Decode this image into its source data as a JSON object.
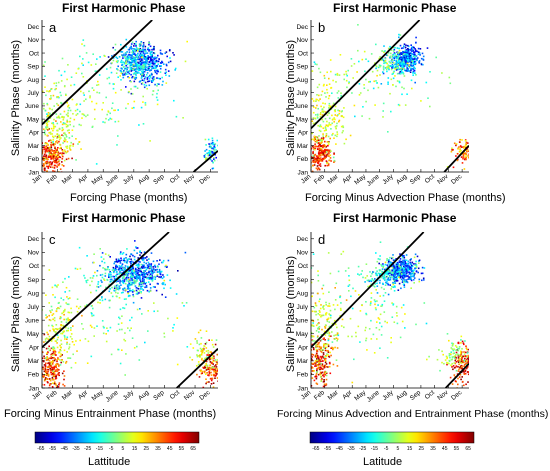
{
  "chart_data": [
    {
      "type": "scatter",
      "panel_label": "a",
      "title": "First Harmonic Phase",
      "xlabel": "Forcing Phase (months)",
      "ylabel": "Salinity Phase (months)",
      "x_ticks": [
        "Jan",
        "Feb",
        "Mar",
        "Apr",
        "May",
        "June",
        "July",
        "Aug",
        "Sep",
        "Oct",
        "Nov",
        "Dec"
      ],
      "y_ticks": [
        "Jan",
        "Feb",
        "Mar",
        "Apr",
        "May",
        "June",
        "July",
        "Aug",
        "Sep",
        "Oct",
        "Nov",
        "Dec"
      ],
      "xlim": [
        1,
        12.5
      ],
      "ylim": [
        1,
        12.5
      ],
      "lines": [
        {
          "x": [
            1,
            8.2
          ],
          "y": [
            4.6,
            12.5
          ]
        },
        {
          "x": [
            10.9,
            12.5
          ],
          "y": [
            1,
            2.6
          ]
        }
      ],
      "clusters": [
        {
          "cx": 7.6,
          "cy": 9.3,
          "sx": 0.7,
          "sy": 0.8,
          "n": 420,
          "lat": [
            -60,
            -10
          ]
        },
        {
          "cx": 6.8,
          "cy": 9.4,
          "sx": 0.6,
          "sy": 0.6,
          "n": 180,
          "lat": [
            -40,
            5
          ]
        },
        {
          "cx": 1.6,
          "cy": 2.2,
          "sx": 0.45,
          "sy": 0.8,
          "n": 260,
          "lat": [
            25,
            65
          ]
        },
        {
          "cx": 1.9,
          "cy": 4.8,
          "sx": 0.7,
          "sy": 1.4,
          "n": 220,
          "lat": [
            -5,
            25
          ]
        },
        {
          "cx": 12.1,
          "cy": 2.6,
          "sx": 0.35,
          "sy": 0.5,
          "n": 90,
          "lat": [
            -50,
            10
          ]
        },
        {
          "cx": 5.0,
          "cy": 7.0,
          "sx": 2.2,
          "sy": 2.0,
          "n": 180,
          "lat": [
            -20,
            20
          ]
        }
      ]
    },
    {
      "type": "scatter",
      "panel_label": "b",
      "title": "First Harmonic Phase",
      "xlabel": "Forcing Minus Advection Phase (months)",
      "ylabel": "Salinity Phase (months)",
      "x_ticks": [
        "Jan",
        "Feb",
        "Mar",
        "Apr",
        "May",
        "June",
        "July",
        "Aug",
        "Sep",
        "Oct",
        "Nov",
        "Dec"
      ],
      "y_ticks": [
        "Jan",
        "Feb",
        "Mar",
        "Apr",
        "May",
        "June",
        "July",
        "Aug",
        "Sep",
        "Oct",
        "Nov",
        "Dec"
      ],
      "xlim": [
        1,
        12.5
      ],
      "ylim": [
        1,
        12.5
      ],
      "lines": [
        {
          "x": [
            1,
            8.9
          ],
          "y": [
            4.3,
            12.5
          ]
        },
        {
          "x": [
            10.7,
            12.5
          ],
          "y": [
            1,
            3.0
          ]
        }
      ],
      "clusters": [
        {
          "cx": 7.9,
          "cy": 9.6,
          "sx": 0.5,
          "sy": 0.5,
          "n": 380,
          "lat": [
            -60,
            -15
          ]
        },
        {
          "cx": 7.0,
          "cy": 9.3,
          "sx": 0.6,
          "sy": 0.5,
          "n": 120,
          "lat": [
            -30,
            10
          ]
        },
        {
          "cx": 1.6,
          "cy": 2.5,
          "sx": 0.4,
          "sy": 0.6,
          "n": 250,
          "lat": [
            25,
            65
          ]
        },
        {
          "cx": 2.0,
          "cy": 5.0,
          "sx": 0.7,
          "sy": 1.5,
          "n": 200,
          "lat": [
            -5,
            25
          ]
        },
        {
          "cx": 12.0,
          "cy": 2.6,
          "sx": 0.35,
          "sy": 0.5,
          "n": 90,
          "lat": [
            10,
            55
          ]
        },
        {
          "cx": 5.5,
          "cy": 8.5,
          "sx": 2.0,
          "sy": 1.5,
          "n": 130,
          "lat": [
            -20,
            20
          ]
        }
      ]
    },
    {
      "type": "scatter",
      "panel_label": "c",
      "title": "First Harmonic Phase",
      "xlabel": "Forcing Minus Entrainment Phase (months)",
      "ylabel": "Salinity Phase (months)",
      "x_ticks": [
        "Jan",
        "Feb",
        "Mar",
        "Apr",
        "May",
        "June",
        "July",
        "Aug",
        "Sep",
        "Oct",
        "Nov",
        "Dec"
      ],
      "y_ticks": [
        "Jan",
        "Feb",
        "Mar",
        "Apr",
        "May",
        "June",
        "July",
        "Aug",
        "Sep",
        "Oct",
        "Nov",
        "Dec"
      ],
      "xlim": [
        1,
        12.5
      ],
      "ylim": [
        1,
        12.5
      ],
      "lines": [
        {
          "x": [
            1,
            9.3
          ],
          "y": [
            4.0,
            12.5
          ]
        },
        {
          "x": [
            9.8,
            12.5
          ],
          "y": [
            1,
            3.9
          ]
        }
      ],
      "clusters": [
        {
          "cx": 7.2,
          "cy": 9.6,
          "sx": 0.9,
          "sy": 0.7,
          "n": 460,
          "lat": [
            -60,
            -15
          ]
        },
        {
          "cx": 6.2,
          "cy": 9.0,
          "sx": 0.9,
          "sy": 0.7,
          "n": 160,
          "lat": [
            -35,
            5
          ]
        },
        {
          "cx": 1.5,
          "cy": 2.4,
          "sx": 0.4,
          "sy": 0.8,
          "n": 200,
          "lat": [
            25,
            65
          ]
        },
        {
          "cx": 1.9,
          "cy": 5.2,
          "sx": 0.7,
          "sy": 1.6,
          "n": 200,
          "lat": [
            -5,
            30
          ]
        },
        {
          "cx": 12.0,
          "cy": 2.6,
          "sx": 0.4,
          "sy": 0.7,
          "n": 140,
          "lat": [
            25,
            65
          ]
        },
        {
          "cx": 11.6,
          "cy": 3.4,
          "sx": 0.6,
          "sy": 0.7,
          "n": 90,
          "lat": [
            -5,
            25
          ]
        },
        {
          "cx": 5.0,
          "cy": 7.0,
          "sx": 2.4,
          "sy": 2.2,
          "n": 170,
          "lat": [
            -20,
            20
          ]
        }
      ]
    },
    {
      "type": "scatter",
      "panel_label": "d",
      "title": "First Harmonic Phase",
      "xlabel": "Forcing Minus Advection and Entrainment Phase (months)",
      "ylabel": "Salinity Phase (months)",
      "x_ticks": [
        "Jan",
        "Feb",
        "Mar",
        "Apr",
        "May",
        "June",
        "July",
        "Aug",
        "Sep",
        "Oct",
        "Nov",
        "Dec"
      ],
      "y_ticks": [
        "Jan",
        "Feb",
        "Mar",
        "Apr",
        "May",
        "June",
        "July",
        "Aug",
        "Sep",
        "Oct",
        "Nov",
        "Dec"
      ],
      "xlim": [
        1,
        12.5
      ],
      "ylim": [
        1,
        12.5
      ],
      "lines": [
        {
          "x": [
            1,
            9.2
          ],
          "y": [
            4.0,
            12.5
          ]
        },
        {
          "x": [
            10.8,
            12.5
          ],
          "y": [
            1,
            2.8
          ]
        }
      ],
      "clusters": [
        {
          "cx": 7.6,
          "cy": 9.7,
          "sx": 0.6,
          "sy": 0.5,
          "n": 380,
          "lat": [
            -60,
            -15
          ]
        },
        {
          "cx": 6.5,
          "cy": 9.3,
          "sx": 0.8,
          "sy": 0.6,
          "n": 150,
          "lat": [
            -35,
            5
          ]
        },
        {
          "cx": 1.6,
          "cy": 3.0,
          "sx": 0.45,
          "sy": 1.0,
          "n": 200,
          "lat": [
            25,
            65
          ]
        },
        {
          "cx": 1.8,
          "cy": 5.5,
          "sx": 0.7,
          "sy": 1.5,
          "n": 180,
          "lat": [
            -5,
            30
          ]
        },
        {
          "cx": 12.0,
          "cy": 2.8,
          "sx": 0.45,
          "sy": 0.8,
          "n": 150,
          "lat": [
            30,
            65
          ]
        },
        {
          "cx": 11.4,
          "cy": 3.5,
          "sx": 0.6,
          "sy": 0.7,
          "n": 80,
          "lat": [
            -10,
            20
          ]
        },
        {
          "cx": 5.2,
          "cy": 7.5,
          "sx": 2.2,
          "sy": 2.0,
          "n": 150,
          "lat": [
            -20,
            20
          ]
        }
      ]
    }
  ],
  "colorbars": [
    {
      "label": "Lattitude",
      "ticks": [
        "-65",
        "-55",
        "-45",
        "-35",
        "-25",
        "-15",
        "-5",
        "5",
        "15",
        "25",
        "35",
        "45",
        "55",
        "65"
      ]
    },
    {
      "label": "Latitude",
      "ticks": [
        "-65",
        "-55",
        "-45",
        "-35",
        "-25",
        "-15",
        "-5",
        "5",
        "15",
        "25",
        "35",
        "45",
        "55",
        "65"
      ]
    }
  ]
}
